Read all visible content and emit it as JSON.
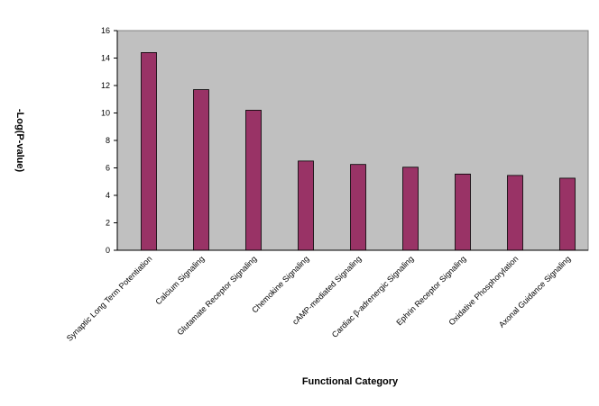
{
  "chart_data": {
    "type": "bar",
    "x_label": "Functional Category",
    "y_label": "-Log(P-value)",
    "categories": [
      "Synaptic Long Term Potentiation",
      "Calcium Signaling",
      "Glutamate Receptor Signaling",
      "Chemokine Signaling",
      "cAMP-mediated Signaling",
      "Cardiac β-adrenergic Signaling",
      "Ephrin Receptor Signaling",
      "Oxidative Phosphorylation",
      "Axonal Guidance Signaling"
    ],
    "values": [
      14.4,
      11.7,
      10.2,
      6.5,
      6.25,
      6.05,
      5.55,
      5.45,
      5.25
    ],
    "color": "#993366",
    "ylim": [
      0,
      16
    ],
    "yticks": [
      0,
      2,
      4,
      6,
      8,
      10,
      12,
      14,
      16
    ],
    "grid": false
  }
}
